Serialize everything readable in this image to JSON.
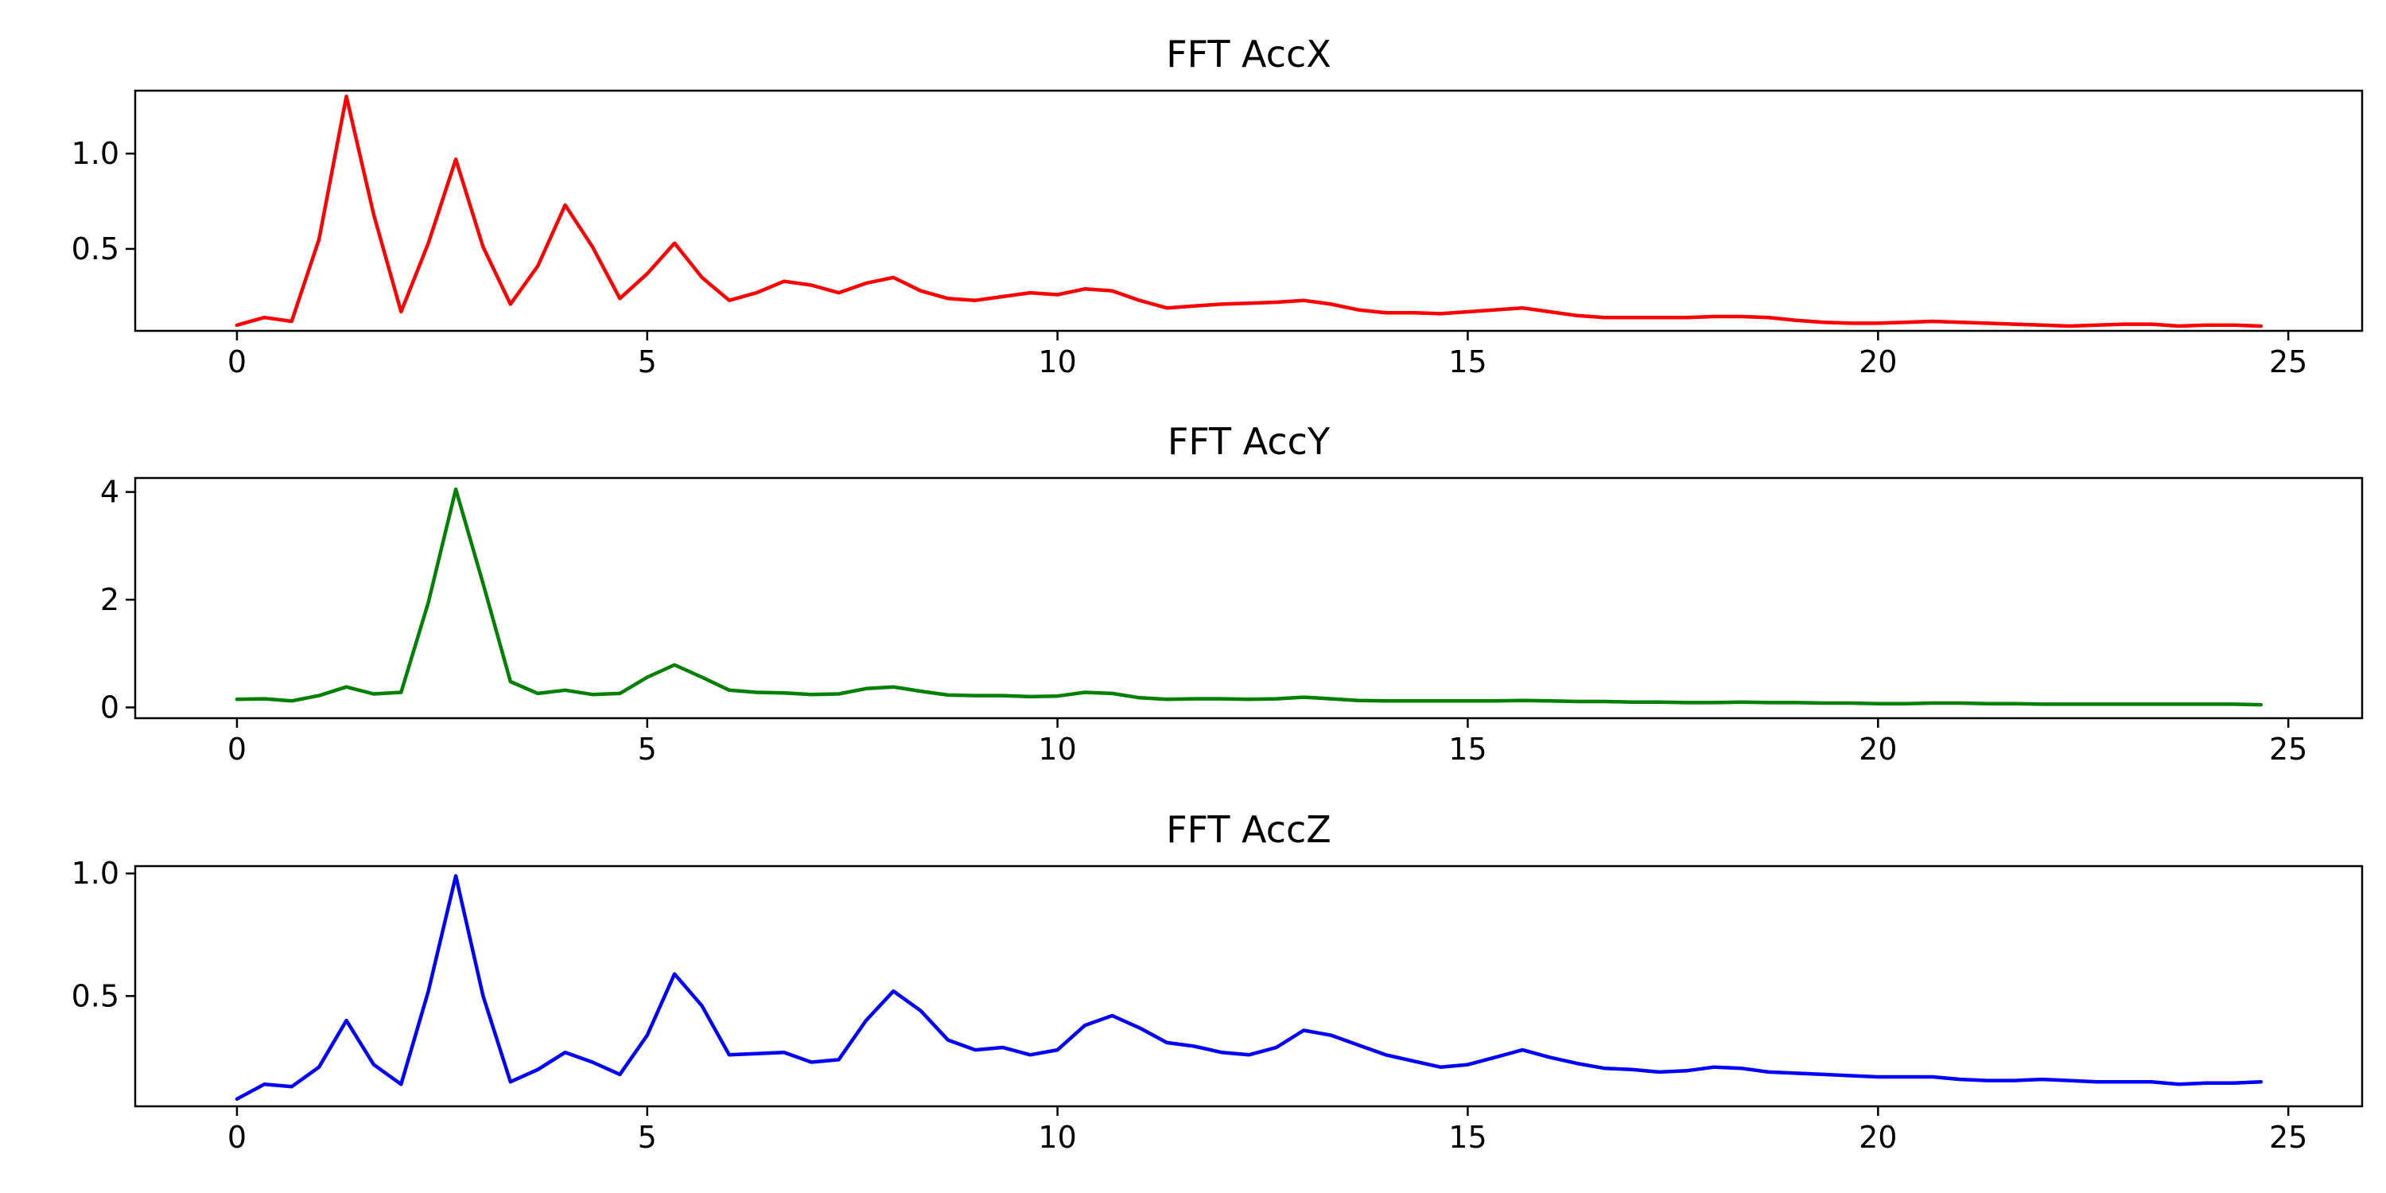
{
  "chart_data": [
    {
      "type": "line",
      "title": "FFT AccX",
      "color": "#ff0000",
      "xlim": [
        -1.24,
        25.9
      ],
      "ylim": [
        0.07,
        1.33
      ],
      "xticks": [
        0,
        5,
        10,
        15,
        20,
        25
      ],
      "xtick_labels": [
        "0",
        "5",
        "10",
        "15",
        "20",
        "25"
      ],
      "yticks": [
        0.5,
        1.0
      ],
      "ytick_labels": [
        "0.5",
        "1.0"
      ],
      "grid": false,
      "x": [
        0,
        0.333,
        0.667,
        1.0,
        1.333,
        1.667,
        2.0,
        2.333,
        2.667,
        3.0,
        3.333,
        3.667,
        4.0,
        4.333,
        4.667,
        5.0,
        5.333,
        5.667,
        6.0,
        6.333,
        6.667,
        7.0,
        7.333,
        7.667,
        8.0,
        8.333,
        8.667,
        9.0,
        9.333,
        9.667,
        10.0,
        10.333,
        10.667,
        11.0,
        11.333,
        11.667,
        12.0,
        12.333,
        12.667,
        13.0,
        13.333,
        13.667,
        14.0,
        14.333,
        14.667,
        15.0,
        15.333,
        15.667,
        16.0,
        16.333,
        16.667,
        17.0,
        17.333,
        17.667,
        18.0,
        18.333,
        18.667,
        19.0,
        19.333,
        19.667,
        20.0,
        20.333,
        20.667,
        21.0,
        21.333,
        21.667,
        22.0,
        22.333,
        22.667,
        23.0,
        23.333,
        23.667,
        24.0,
        24.333,
        24.667
      ],
      "y": [
        0.1,
        0.14,
        0.12,
        0.55,
        1.3,
        0.68,
        0.17,
        0.53,
        0.97,
        0.51,
        0.21,
        0.41,
        0.73,
        0.51,
        0.24,
        0.37,
        0.53,
        0.35,
        0.23,
        0.27,
        0.33,
        0.31,
        0.27,
        0.32,
        0.35,
        0.28,
        0.24,
        0.23,
        0.25,
        0.27,
        0.26,
        0.29,
        0.28,
        0.23,
        0.19,
        0.2,
        0.21,
        0.215,
        0.22,
        0.23,
        0.21,
        0.18,
        0.165,
        0.165,
        0.16,
        0.17,
        0.18,
        0.19,
        0.17,
        0.15,
        0.14,
        0.14,
        0.14,
        0.14,
        0.145,
        0.145,
        0.14,
        0.125,
        0.115,
        0.11,
        0.11,
        0.115,
        0.12,
        0.115,
        0.11,
        0.105,
        0.1,
        0.095,
        0.1,
        0.105,
        0.105,
        0.095,
        0.1,
        0.1,
        0.095
      ]
    },
    {
      "type": "line",
      "title": "FFT AccY",
      "color": "#008000",
      "xlim": [
        -1.24,
        25.9
      ],
      "ylim": [
        -0.2,
        4.26
      ],
      "xticks": [
        0,
        5,
        10,
        15,
        20,
        25
      ],
      "xtick_labels": [
        "0",
        "5",
        "10",
        "15",
        "20",
        "25"
      ],
      "yticks": [
        0,
        2,
        4
      ],
      "ytick_labels": [
        "0",
        "2",
        "4"
      ],
      "grid": false,
      "x": [
        0,
        0.333,
        0.667,
        1.0,
        1.333,
        1.667,
        2.0,
        2.333,
        2.667,
        3.0,
        3.333,
        3.667,
        4.0,
        4.333,
        4.667,
        5.0,
        5.333,
        5.667,
        6.0,
        6.333,
        6.667,
        7.0,
        7.333,
        7.667,
        8.0,
        8.333,
        8.667,
        9.0,
        9.333,
        9.667,
        10.0,
        10.333,
        10.667,
        11.0,
        11.333,
        11.667,
        12.0,
        12.333,
        12.667,
        13.0,
        13.333,
        13.667,
        14.0,
        14.333,
        14.667,
        15.0,
        15.333,
        15.667,
        16.0,
        16.333,
        16.667,
        17.0,
        17.333,
        17.667,
        18.0,
        18.333,
        18.667,
        19.0,
        19.333,
        19.667,
        20.0,
        20.333,
        20.667,
        21.0,
        21.333,
        21.667,
        22.0,
        22.333,
        22.667,
        23.0,
        23.333,
        23.667,
        24.0,
        24.333,
        24.667
      ],
      "y": [
        0.15,
        0.16,
        0.12,
        0.22,
        0.38,
        0.25,
        0.28,
        1.95,
        4.05,
        2.3,
        0.48,
        0.26,
        0.32,
        0.24,
        0.26,
        0.56,
        0.79,
        0.56,
        0.32,
        0.28,
        0.27,
        0.24,
        0.25,
        0.35,
        0.38,
        0.3,
        0.23,
        0.22,
        0.22,
        0.2,
        0.21,
        0.28,
        0.26,
        0.18,
        0.15,
        0.16,
        0.16,
        0.15,
        0.16,
        0.19,
        0.16,
        0.13,
        0.12,
        0.12,
        0.12,
        0.12,
        0.12,
        0.13,
        0.12,
        0.11,
        0.11,
        0.1,
        0.1,
        0.09,
        0.09,
        0.1,
        0.09,
        0.09,
        0.08,
        0.08,
        0.07,
        0.07,
        0.08,
        0.08,
        0.07,
        0.07,
        0.06,
        0.06,
        0.06,
        0.06,
        0.06,
        0.06,
        0.06,
        0.06,
        0.05
      ]
    },
    {
      "type": "line",
      "title": "FFT AccZ",
      "color": "#0000ff",
      "xlim": [
        -1.24,
        25.9
      ],
      "ylim": [
        0.05,
        1.03
      ],
      "xticks": [
        0,
        5,
        10,
        15,
        20,
        25
      ],
      "xtick_labels": [
        "0",
        "5",
        "10",
        "15",
        "20",
        "25"
      ],
      "yticks": [
        0.5,
        1.0
      ],
      "ytick_labels": [
        "0.5",
        "1.0"
      ],
      "grid": false,
      "x": [
        0,
        0.333,
        0.667,
        1.0,
        1.333,
        1.667,
        2.0,
        2.333,
        2.667,
        3.0,
        3.333,
        3.667,
        4.0,
        4.333,
        4.667,
        5.0,
        5.333,
        5.667,
        6.0,
        6.333,
        6.667,
        7.0,
        7.333,
        7.667,
        8.0,
        8.333,
        8.667,
        9.0,
        9.333,
        9.667,
        10.0,
        10.333,
        10.667,
        11.0,
        11.333,
        11.667,
        12.0,
        12.333,
        12.667,
        13.0,
        13.333,
        13.667,
        14.0,
        14.333,
        14.667,
        15.0,
        15.333,
        15.667,
        16.0,
        16.333,
        16.667,
        17.0,
        17.333,
        17.667,
        18.0,
        18.333,
        18.667,
        19.0,
        19.333,
        19.667,
        20.0,
        20.333,
        20.667,
        21.0,
        21.333,
        21.667,
        22.0,
        22.333,
        22.667,
        23.0,
        23.333,
        23.667,
        24.0,
        24.333,
        24.667
      ],
      "y": [
        0.08,
        0.14,
        0.13,
        0.21,
        0.4,
        0.22,
        0.14,
        0.52,
        0.99,
        0.5,
        0.15,
        0.2,
        0.27,
        0.23,
        0.18,
        0.34,
        0.59,
        0.46,
        0.26,
        0.265,
        0.27,
        0.23,
        0.24,
        0.4,
        0.52,
        0.44,
        0.32,
        0.28,
        0.29,
        0.26,
        0.28,
        0.38,
        0.42,
        0.37,
        0.31,
        0.295,
        0.27,
        0.26,
        0.29,
        0.36,
        0.34,
        0.3,
        0.26,
        0.235,
        0.21,
        0.22,
        0.25,
        0.28,
        0.25,
        0.225,
        0.205,
        0.2,
        0.19,
        0.195,
        0.21,
        0.205,
        0.19,
        0.185,
        0.18,
        0.175,
        0.17,
        0.17,
        0.17,
        0.16,
        0.155,
        0.155,
        0.16,
        0.155,
        0.15,
        0.15,
        0.15,
        0.14,
        0.145,
        0.145,
        0.15
      ]
    }
  ]
}
